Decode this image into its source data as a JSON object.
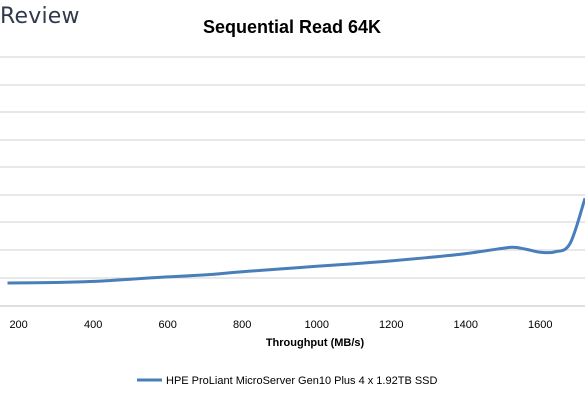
{
  "brand": {
    "text": "Review"
  },
  "chart_data": {
    "type": "line",
    "title": "Sequential Read 64K",
    "xlabel": "Throughput (MB/s)",
    "ylabel": "",
    "xlim": [
      150,
      1720
    ],
    "ylim": [
      0,
      10
    ],
    "x_ticks": [
      200,
      400,
      600,
      800,
      1000,
      1200,
      1400,
      1600
    ],
    "y_gridlines": [
      0,
      1,
      2,
      3,
      4,
      5,
      6,
      7,
      8,
      9,
      10
    ],
    "grid": true,
    "legend_position": "bottom",
    "series": [
      {
        "name": "HPE ProLiant MicroServer Gen10 Plus 4 x 1.92TB SSD",
        "color": "#4a7ebb",
        "points": [
          [
            170,
            0.0
          ],
          [
            300,
            0.02
          ],
          [
            400,
            0.07
          ],
          [
            500,
            0.17
          ],
          [
            600,
            0.27
          ],
          [
            700,
            0.36
          ],
          [
            800,
            0.5
          ],
          [
            900,
            0.62
          ],
          [
            1000,
            0.74
          ],
          [
            1100,
            0.85
          ],
          [
            1200,
            0.98
          ],
          [
            1300,
            1.13
          ],
          [
            1400,
            1.3
          ],
          [
            1480,
            1.49
          ],
          [
            1525,
            1.58
          ],
          [
            1560,
            1.5
          ],
          [
            1600,
            1.36
          ],
          [
            1640,
            1.38
          ],
          [
            1680,
            1.75
          ],
          [
            1720,
            3.75
          ]
        ]
      }
    ]
  }
}
